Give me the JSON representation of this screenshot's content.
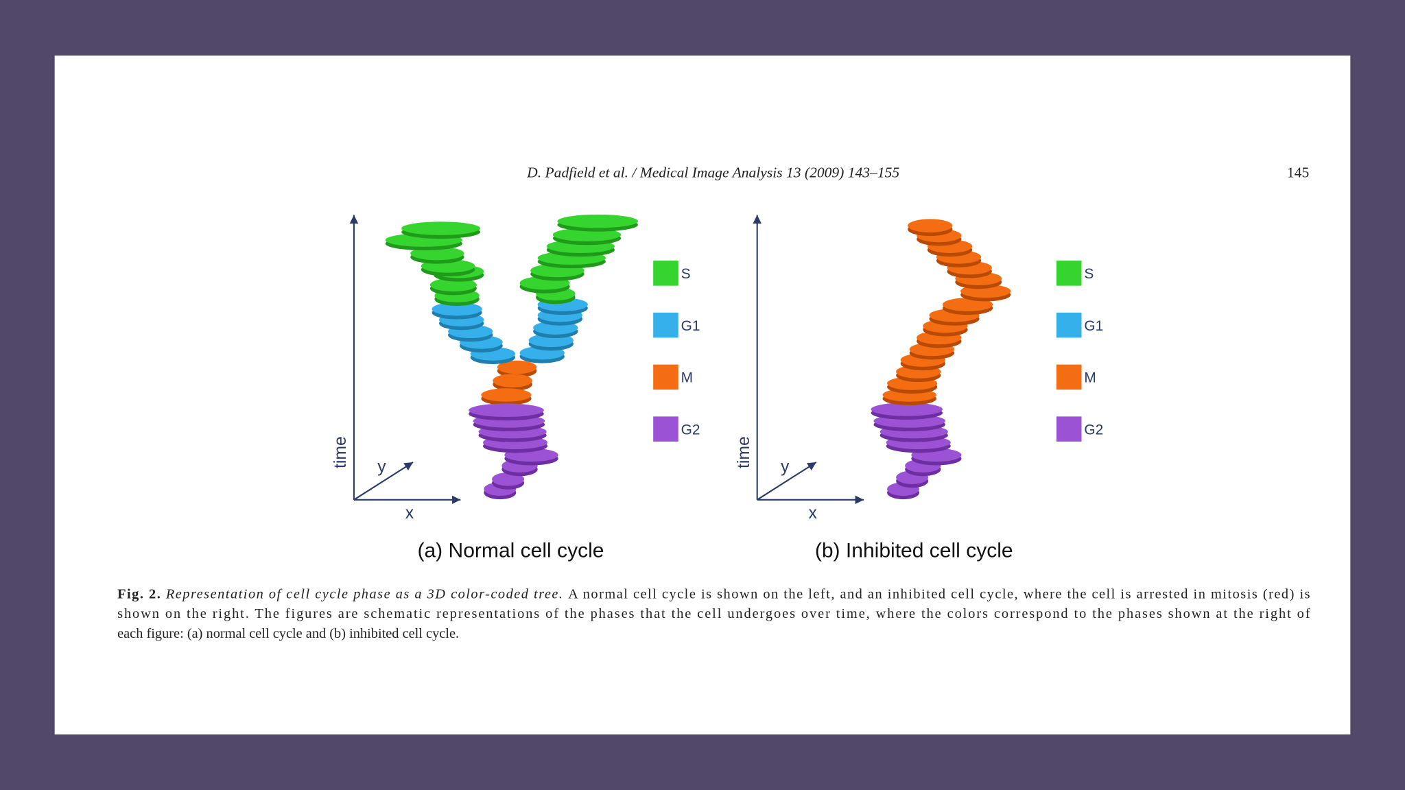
{
  "header": {
    "running_head": "D. Padfield et al. / Medical Image Analysis 13 (2009) 143–155",
    "page_number": "145"
  },
  "figures": [
    {
      "axis_labels": {
        "vertical": "time",
        "x": "x",
        "y": "y"
      },
      "legend": [
        "S",
        "G1",
        "M",
        "G2"
      ],
      "subcaption": "(a) Normal cell cycle"
    },
    {
      "axis_labels": {
        "vertical": "time",
        "x": "x",
        "y": "y"
      },
      "legend": [
        "S",
        "G1",
        "M",
        "G2"
      ],
      "subcaption": "(b) Inhibited cell cycle"
    }
  ],
  "caption": {
    "label": "Fig. 2.",
    "title": "Representation of cell cycle phase as a 3D color-coded tree.",
    "lines": [
      "A normal cell cycle is shown on the left, and an inhibited cell cycle, where the cell is arrested in mitosis (red) is",
      "shown on the right. The figures are schematic representations of the phases that the cell undergoes over time, where the colors correspond to the phases shown at the right of",
      "each figure: (a) normal cell cycle and (b) inhibited cell cycle."
    ]
  }
}
